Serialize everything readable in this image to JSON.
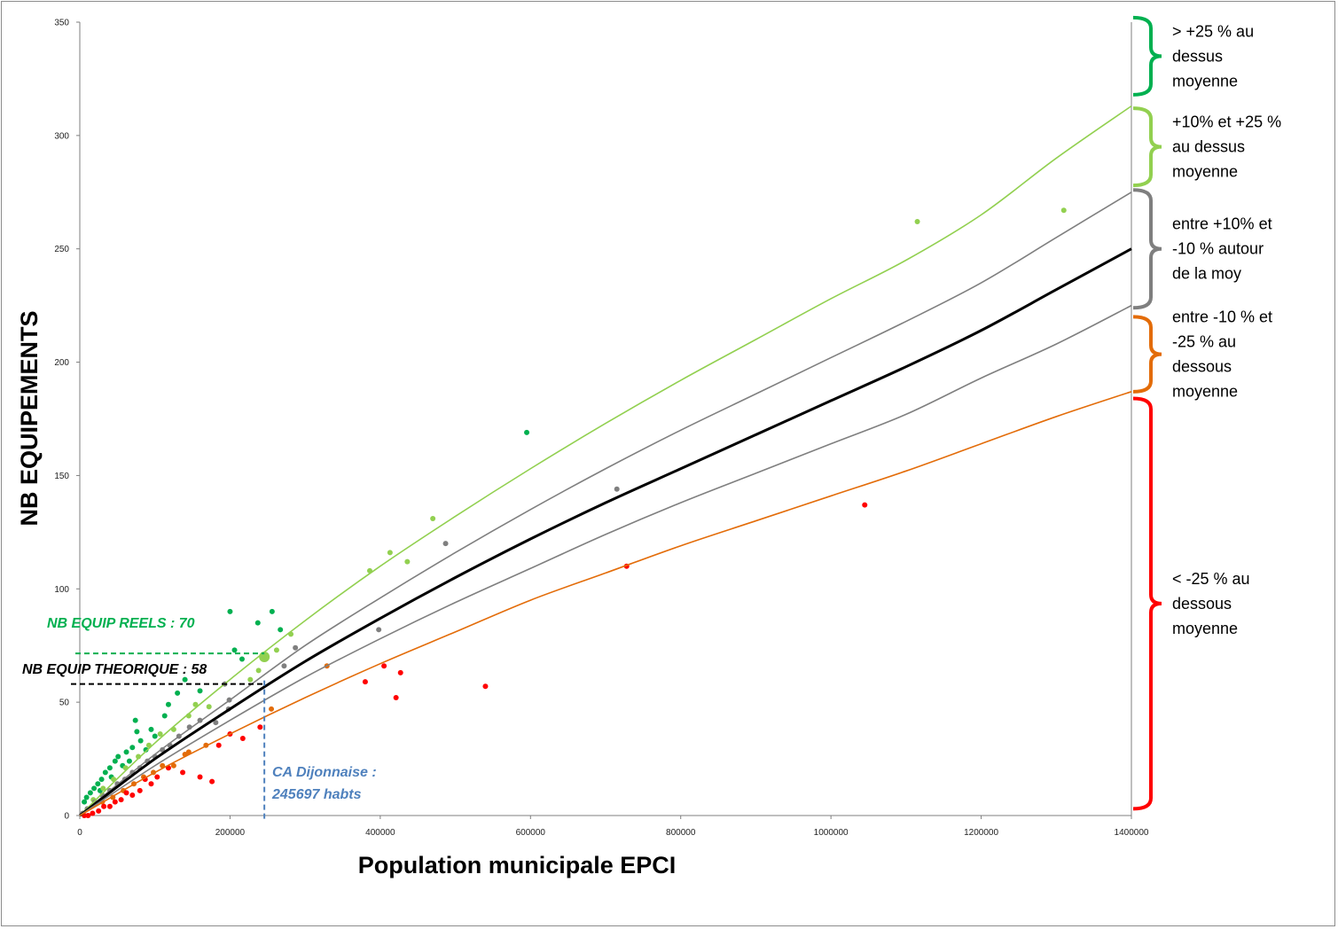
{
  "chart_data": {
    "type": "scatter",
    "xlabel": "Population municipale EPCI",
    "ylabel": "NB EQUIPEMENTS",
    "xlim": [
      0,
      1400000
    ],
    "ylim": [
      0,
      350
    ],
    "xticks": [
      0,
      200000,
      400000,
      600000,
      800000,
      1000000,
      1200000,
      1400000
    ],
    "yticks": [
      0,
      50,
      100,
      150,
      200,
      250,
      300,
      350
    ],
    "grid": false,
    "curves": [
      {
        "color": "#92d050",
        "x": [
          0,
          100000,
          200000,
          300000,
          400000,
          500000,
          600000,
          700000,
          800000,
          900000,
          1000000,
          1100000,
          1200000,
          1300000,
          1400000
        ],
        "y": [
          0,
          32,
          60,
          86,
          110,
          132,
          153,
          173,
          192,
          210,
          228,
          245,
          265,
          290,
          313
        ]
      },
      {
        "color": "#7f7f7f",
        "x": [
          0,
          100000,
          200000,
          300000,
          400000,
          500000,
          600000,
          700000,
          800000,
          900000,
          1000000,
          1100000,
          1200000,
          1300000,
          1400000
        ],
        "y": [
          0,
          27,
          51,
          75,
          96,
          116,
          135,
          153,
          170,
          186,
          202,
          218,
          235,
          255,
          275
        ]
      },
      {
        "color": "#000000",
        "x": [
          0,
          100000,
          200000,
          300000,
          400000,
          500000,
          600000,
          700000,
          800000,
          900000,
          1000000,
          1100000,
          1200000,
          1300000,
          1400000
        ],
        "y": [
          0,
          25,
          47,
          68,
          87,
          105,
          122,
          138,
          153,
          168,
          183,
          198,
          214,
          232,
          250
        ]
      },
      {
        "color": "#7f7f7f",
        "x": [
          0,
          100000,
          200000,
          300000,
          400000,
          500000,
          600000,
          700000,
          800000,
          900000,
          1000000,
          1100000,
          1200000,
          1300000,
          1400000
        ],
        "y": [
          0,
          22,
          42,
          61,
          78,
          94,
          109,
          124,
          138,
          151,
          164,
          177,
          193,
          208,
          225
        ]
      },
      {
        "color": "#e36c09",
        "x": [
          0,
          100000,
          200000,
          300000,
          400000,
          500000,
          600000,
          700000,
          800000,
          900000,
          1000000,
          1100000,
          1200000,
          1300000,
          1400000
        ],
        "y": [
          0,
          19,
          36,
          52,
          67,
          81,
          95,
          107,
          119,
          130,
          141,
          152,
          164,
          176,
          187
        ]
      }
    ],
    "points": [
      {
        "x": 595000,
        "y": 169,
        "c": "#00b050"
      },
      {
        "x": 1115000,
        "y": 262,
        "c": "#92d050"
      },
      {
        "x": 1310000,
        "y": 267,
        "c": "#92d050"
      },
      {
        "x": 470000,
        "y": 131,
        "c": "#92d050"
      },
      {
        "x": 413000,
        "y": 116,
        "c": "#92d050"
      },
      {
        "x": 436000,
        "y": 112,
        "c": "#92d050"
      },
      {
        "x": 386000,
        "y": 108,
        "c": "#92d050"
      },
      {
        "x": 487000,
        "y": 120,
        "c": "#7f7f7f"
      },
      {
        "x": 715000,
        "y": 144,
        "c": "#7f7f7f"
      },
      {
        "x": 398000,
        "y": 82,
        "c": "#7f7f7f"
      },
      {
        "x": 287000,
        "y": 74,
        "c": "#7f7f7f"
      },
      {
        "x": 728000,
        "y": 110,
        "c": "#ff0000"
      },
      {
        "x": 1045000,
        "y": 137,
        "c": "#ff0000"
      },
      {
        "x": 540000,
        "y": 57,
        "c": "#ff0000"
      },
      {
        "x": 405000,
        "y": 66,
        "c": "#ff0000"
      },
      {
        "x": 427000,
        "y": 63,
        "c": "#ff0000"
      },
      {
        "x": 380000,
        "y": 59,
        "c": "#ff0000"
      },
      {
        "x": 421000,
        "y": 52,
        "c": "#ff0000"
      },
      {
        "x": 329000,
        "y": 66,
        "c": "#e36c09"
      },
      {
        "x": 255000,
        "y": 47,
        "c": "#e36c09"
      },
      {
        "x": 200000,
        "y": 90,
        "c": "#00b050"
      },
      {
        "x": 256000,
        "y": 90,
        "c": "#00b050"
      },
      {
        "x": 237000,
        "y": 85,
        "c": "#00b050"
      },
      {
        "x": 267000,
        "y": 82,
        "c": "#00b050"
      },
      {
        "x": 206000,
        "y": 73,
        "c": "#00b050"
      },
      {
        "x": 216000,
        "y": 69,
        "c": "#00b050"
      },
      {
        "x": 281000,
        "y": 80,
        "c": "#92d050"
      },
      {
        "x": 262000,
        "y": 73,
        "c": "#92d050"
      },
      {
        "x": 245697,
        "y": 70,
        "c": "#92d050",
        "r": 6
      },
      {
        "x": 238000,
        "y": 64,
        "c": "#92d050"
      },
      {
        "x": 227000,
        "y": 60,
        "c": "#92d050"
      },
      {
        "x": 272000,
        "y": 66,
        "c": "#7f7f7f"
      },
      {
        "x": 193000,
        "y": 58,
        "c": "#7f7f7f"
      },
      {
        "x": 199000,
        "y": 51,
        "c": "#7f7f7f"
      },
      {
        "x": 198000,
        "y": 47,
        "c": "#7f7f7f"
      },
      {
        "x": 181000,
        "y": 41,
        "c": "#7f7f7f"
      },
      {
        "x": 240000,
        "y": 39,
        "c": "#ff0000"
      },
      {
        "x": 217000,
        "y": 34,
        "c": "#ff0000"
      },
      {
        "x": 200000,
        "y": 36,
        "c": "#ff0000"
      },
      {
        "x": 185000,
        "y": 31,
        "c": "#ff0000"
      },
      {
        "x": 176000,
        "y": 15,
        "c": "#ff0000"
      },
      {
        "x": 140000,
        "y": 60,
        "c": "#00b050"
      },
      {
        "x": 160000,
        "y": 55,
        "c": "#00b050"
      },
      {
        "x": 130000,
        "y": 54,
        "c": "#00b050"
      },
      {
        "x": 118000,
        "y": 49,
        "c": "#00b050"
      },
      {
        "x": 113000,
        "y": 44,
        "c": "#00b050"
      },
      {
        "x": 74000,
        "y": 42,
        "c": "#00b050"
      },
      {
        "x": 95000,
        "y": 38,
        "c": "#00b050"
      },
      {
        "x": 76000,
        "y": 37,
        "c": "#00b050"
      },
      {
        "x": 100000,
        "y": 35,
        "c": "#00b050"
      },
      {
        "x": 81000,
        "y": 33,
        "c": "#00b050"
      },
      {
        "x": 70000,
        "y": 30,
        "c": "#00b050"
      },
      {
        "x": 62000,
        "y": 28,
        "c": "#00b050"
      },
      {
        "x": 51000,
        "y": 26,
        "c": "#00b050"
      },
      {
        "x": 47000,
        "y": 24,
        "c": "#00b050"
      },
      {
        "x": 57000,
        "y": 22,
        "c": "#00b050"
      },
      {
        "x": 40000,
        "y": 21,
        "c": "#00b050"
      },
      {
        "x": 34000,
        "y": 19,
        "c": "#00b050"
      },
      {
        "x": 29000,
        "y": 16,
        "c": "#00b050"
      },
      {
        "x": 24000,
        "y": 14,
        "c": "#00b050"
      },
      {
        "x": 19000,
        "y": 12,
        "c": "#00b050"
      },
      {
        "x": 14000,
        "y": 10,
        "c": "#00b050"
      },
      {
        "x": 9000,
        "y": 8,
        "c": "#00b050"
      },
      {
        "x": 6000,
        "y": 6,
        "c": "#00b050"
      },
      {
        "x": 42000,
        "y": 17,
        "c": "#00b050"
      },
      {
        "x": 88000,
        "y": 29,
        "c": "#00b050"
      },
      {
        "x": 66000,
        "y": 24,
        "c": "#00b050"
      },
      {
        "x": 27000,
        "y": 11,
        "c": "#00b050"
      },
      {
        "x": 154000,
        "y": 49,
        "c": "#92d050"
      },
      {
        "x": 172000,
        "y": 48,
        "c": "#92d050"
      },
      {
        "x": 145000,
        "y": 44,
        "c": "#92d050"
      },
      {
        "x": 125000,
        "y": 38,
        "c": "#92d050"
      },
      {
        "x": 107000,
        "y": 36,
        "c": "#92d050"
      },
      {
        "x": 92000,
        "y": 31,
        "c": "#92d050"
      },
      {
        "x": 78000,
        "y": 26,
        "c": "#92d050"
      },
      {
        "x": 61000,
        "y": 21,
        "c": "#92d050"
      },
      {
        "x": 45000,
        "y": 16,
        "c": "#92d050"
      },
      {
        "x": 31000,
        "y": 12,
        "c": "#92d050"
      },
      {
        "x": 18000,
        "y": 7,
        "c": "#92d050"
      },
      {
        "x": 160000,
        "y": 42,
        "c": "#7f7f7f"
      },
      {
        "x": 146000,
        "y": 39,
        "c": "#7f7f7f"
      },
      {
        "x": 132000,
        "y": 35,
        "c": "#7f7f7f"
      },
      {
        "x": 120000,
        "y": 31,
        "c": "#7f7f7f"
      },
      {
        "x": 110000,
        "y": 29,
        "c": "#7f7f7f"
      },
      {
        "x": 100000,
        "y": 26,
        "c": "#7f7f7f"
      },
      {
        "x": 90000,
        "y": 24,
        "c": "#7f7f7f"
      },
      {
        "x": 80000,
        "y": 21,
        "c": "#7f7f7f"
      },
      {
        "x": 70000,
        "y": 19,
        "c": "#7f7f7f"
      },
      {
        "x": 60000,
        "y": 16,
        "c": "#7f7f7f"
      },
      {
        "x": 50000,
        "y": 14,
        "c": "#7f7f7f"
      },
      {
        "x": 40000,
        "y": 11,
        "c": "#7f7f7f"
      },
      {
        "x": 30000,
        "y": 9,
        "c": "#7f7f7f"
      },
      {
        "x": 20000,
        "y": 6,
        "c": "#7f7f7f"
      },
      {
        "x": 10000,
        "y": 3,
        "c": "#7f7f7f"
      },
      {
        "x": 4000,
        "y": 1,
        "c": "#7f7f7f"
      },
      {
        "x": 168000,
        "y": 31,
        "c": "#e36c09"
      },
      {
        "x": 145000,
        "y": 28,
        "c": "#e36c09"
      },
      {
        "x": 140000,
        "y": 27,
        "c": "#e36c09"
      },
      {
        "x": 125000,
        "y": 22,
        "c": "#e36c09"
      },
      {
        "x": 110000,
        "y": 22,
        "c": "#e36c09"
      },
      {
        "x": 98000,
        "y": 19,
        "c": "#e36c09"
      },
      {
        "x": 85000,
        "y": 17,
        "c": "#e36c09"
      },
      {
        "x": 72000,
        "y": 14,
        "c": "#e36c09"
      },
      {
        "x": 58000,
        "y": 11,
        "c": "#e36c09"
      },
      {
        "x": 44000,
        "y": 8,
        "c": "#e36c09"
      },
      {
        "x": 30000,
        "y": 6,
        "c": "#e36c09"
      },
      {
        "x": 160000,
        "y": 17,
        "c": "#ff0000"
      },
      {
        "x": 137000,
        "y": 19,
        "c": "#ff0000"
      },
      {
        "x": 118000,
        "y": 21,
        "c": "#ff0000"
      },
      {
        "x": 103000,
        "y": 17,
        "c": "#ff0000"
      },
      {
        "x": 95000,
        "y": 14,
        "c": "#ff0000"
      },
      {
        "x": 87000,
        "y": 16,
        "c": "#ff0000"
      },
      {
        "x": 80000,
        "y": 11,
        "c": "#ff0000"
      },
      {
        "x": 70000,
        "y": 9,
        "c": "#ff0000"
      },
      {
        "x": 62000,
        "y": 10,
        "c": "#ff0000"
      },
      {
        "x": 55000,
        "y": 7,
        "c": "#ff0000"
      },
      {
        "x": 47000,
        "y": 6,
        "c": "#ff0000"
      },
      {
        "x": 40000,
        "y": 4,
        "c": "#ff0000"
      },
      {
        "x": 32000,
        "y": 4,
        "c": "#ff0000"
      },
      {
        "x": 25000,
        "y": 2,
        "c": "#ff0000"
      },
      {
        "x": 17000,
        "y": 1,
        "c": "#ff0000"
      },
      {
        "x": 11000,
        "y": 0,
        "c": "#ff0000"
      },
      {
        "x": 6000,
        "y": 0,
        "c": "#ff0000"
      }
    ],
    "bands": [
      {
        "color": "#00b050",
        "ylim": [
          318,
          352
        ],
        "lines": [
          "> +25 % au",
          "dessus",
          "moyenne"
        ]
      },
      {
        "color": "#92d050",
        "ylim": [
          278,
          312
        ],
        "lines": [
          "+10% et +25 %",
          "au dessus",
          "moyenne"
        ]
      },
      {
        "color": "#7f7f7f",
        "ylim": [
          224,
          276
        ],
        "lines": [
          "entre +10% et",
          "-10 % autour",
          "de la moy"
        ]
      },
      {
        "color": "#e36c09",
        "ylim": [
          187,
          220
        ],
        "lines": [
          "entre -10 % et",
          "-25 % au",
          "dessous",
          "moyenne"
        ]
      },
      {
        "color": "#ff0000",
        "ylim": [
          3,
          184
        ],
        "lines": [
          "< -25 % au",
          "dessous",
          "moyenne"
        ]
      }
    ],
    "annotations": {
      "reel": {
        "text": "NB EQUIP REELS : 70",
        "color": "#00b050",
        "y": 71.5
      },
      "theorique": {
        "text": "NB EQUIP THEORIQUE : 58",
        "color": "#000000",
        "y": 58
      },
      "dijon": {
        "lines": [
          "CA Dijonnaise :",
          "245697 habts"
        ],
        "color": "#4f81bd",
        "x": 245697
      }
    }
  }
}
